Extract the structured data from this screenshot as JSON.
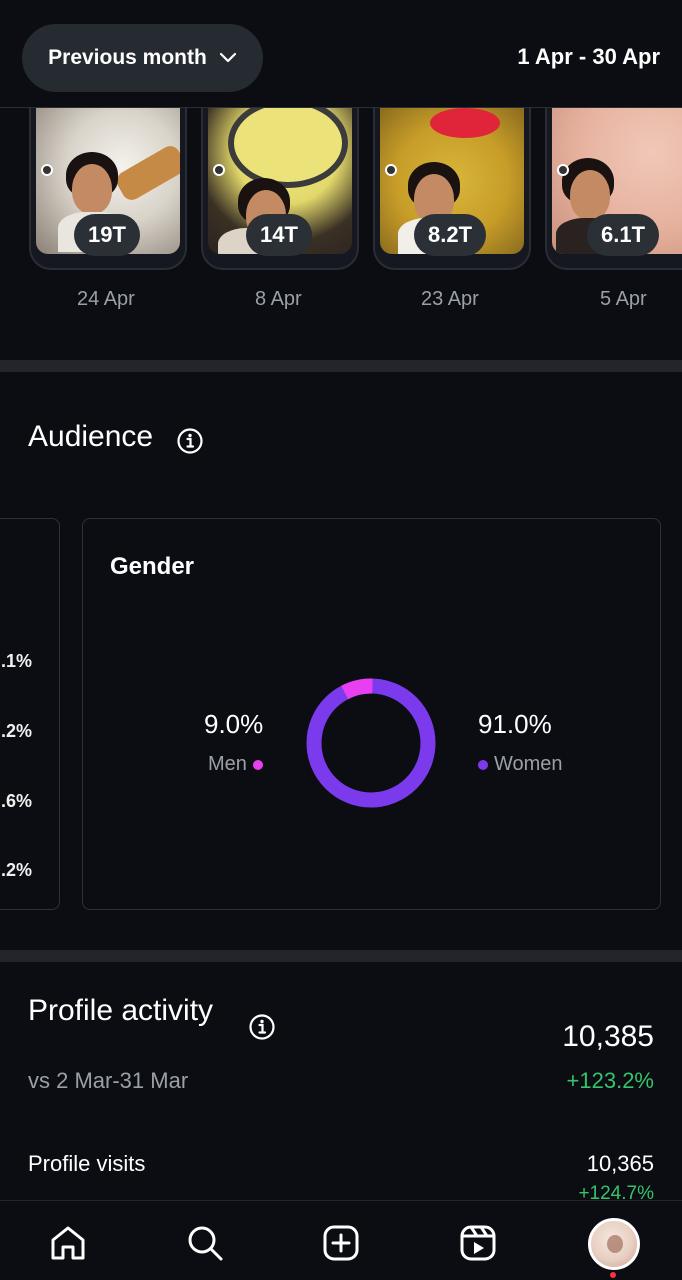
{
  "header": {
    "period_label": "Previous month",
    "date_range": "1 Apr - 30 Apr"
  },
  "top_content": [
    {
      "count": "19T",
      "date": "24 Apr"
    },
    {
      "count": "14T",
      "date": "8 Apr"
    },
    {
      "count": "8.2T",
      "date": "23 Apr"
    },
    {
      "count": "6.1T",
      "date": "5 Apr"
    }
  ],
  "audience": {
    "title": "Audience",
    "partial_card_values": [
      ".1%",
      ".2%",
      ".6%",
      ".2%"
    ],
    "gender": {
      "title": "Gender",
      "men_value": "9.0%",
      "men_label": "Men",
      "women_value": "91.0%",
      "women_label": "Women",
      "men_color": "#e83ff0",
      "women_color": "#7c3aed",
      "men_fraction": 0.09
    }
  },
  "profile_activity": {
    "title": "Profile activity",
    "total": "10,385",
    "comparison": "vs 2 Mar-31 Mar",
    "total_change": "+123.2%",
    "visits_label": "Profile visits",
    "visits_value": "10,365",
    "visits_change": "+124.7%"
  },
  "nav": {
    "items": [
      "home-icon",
      "search-icon",
      "create-icon",
      "reels-icon",
      "profile-avatar"
    ]
  }
}
